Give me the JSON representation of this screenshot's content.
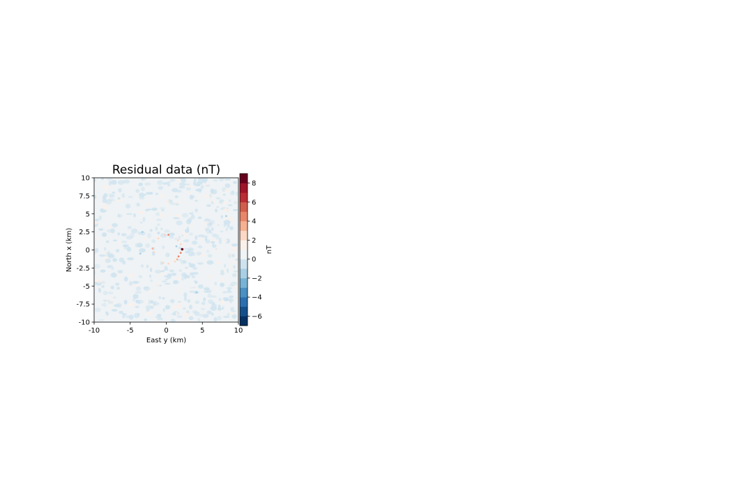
{
  "chart_data": {
    "type": "heatmap",
    "title": "Residual data (nT)",
    "xlabel": "East y (km)",
    "ylabel": "North x (km)",
    "xlim": [
      -10,
      10
    ],
    "ylim": [
      -10,
      10
    ],
    "x_ticks": [
      -10,
      -5,
      0,
      5,
      10
    ],
    "x_tick_labels": [
      "-10",
      "-5",
      "0",
      "5",
      "10"
    ],
    "y_ticks": [
      -10,
      -7.5,
      -5,
      -2.5,
      0,
      2.5,
      5,
      7.5,
      10
    ],
    "y_tick_labels": [
      "-10",
      "-7.5",
      "-5",
      "-2.5",
      "0",
      "2.5",
      "5",
      "7.5",
      "10"
    ],
    "colorbar": {
      "label": "nT",
      "vmin": -7,
      "vmax": 9,
      "ticks": [
        -6,
        -4,
        -2,
        0,
        2,
        4,
        6,
        8
      ],
      "tick_labels": [
        "−6",
        "−4",
        "−2",
        "0",
        "2",
        "4",
        "6",
        "8"
      ],
      "levels": [
        -7,
        -6,
        -5,
        -4,
        -3,
        -2,
        -1,
        0,
        1,
        2,
        3,
        4,
        5,
        6,
        7,
        8,
        9
      ],
      "colors": [
        "#053061",
        "#154f89",
        "#2b6faf",
        "#4a90c2",
        "#78b2d4",
        "#a8cfe4",
        "#cfe3ef",
        "#eff3f5",
        "#faf0ea",
        "#fbd7c4",
        "#f5b192",
        "#e8866b",
        "#d15e4c",
        "#b92d34",
        "#9e1429",
        "#67001f"
      ]
    },
    "background_level_nT": 0,
    "anomalies_nT": [
      {
        "north_km": 0.1,
        "east_km": 2.2,
        "value": 9
      },
      {
        "north_km": -0.4,
        "east_km": 2.0,
        "value": 4
      },
      {
        "north_km": -0.9,
        "east_km": 1.7,
        "value": 4
      },
      {
        "north_km": -1.3,
        "east_km": 1.5,
        "value": 3
      },
      {
        "north_km": 2.1,
        "east_km": 0.3,
        "value": 4
      },
      {
        "north_km": 2.1,
        "east_km": -0.2,
        "value": 2
      },
      {
        "north_km": 0.2,
        "east_km": -1.9,
        "value": 3
      },
      {
        "north_km": -0.3,
        "east_km": -1.7,
        "value": 2
      },
      {
        "north_km": -1.8,
        "east_km": -0.4,
        "value": 2
      },
      {
        "north_km": -1.9,
        "east_km": 0.3,
        "value": 2
      },
      {
        "north_km": 1.3,
        "east_km": 1.6,
        "value": 2
      },
      {
        "north_km": 1.6,
        "east_km": -1.1,
        "value": 2
      },
      {
        "north_km": -1.6,
        "east_km": 1.2,
        "value": 2
      },
      {
        "north_km": 0.8,
        "east_km": 2.0,
        "value": 2
      },
      {
        "north_km": 0.5,
        "east_km": 1.4,
        "value": -2
      },
      {
        "north_km": 2.5,
        "east_km": -3.3,
        "value": -2
      },
      {
        "north_km": 4.7,
        "east_km": 8.3,
        "value": -2
      },
      {
        "north_km": -0.5,
        "east_km": -3.6,
        "value": -2
      },
      {
        "north_km": -5.9,
        "east_km": 4.2,
        "value": -2
      }
    ]
  }
}
